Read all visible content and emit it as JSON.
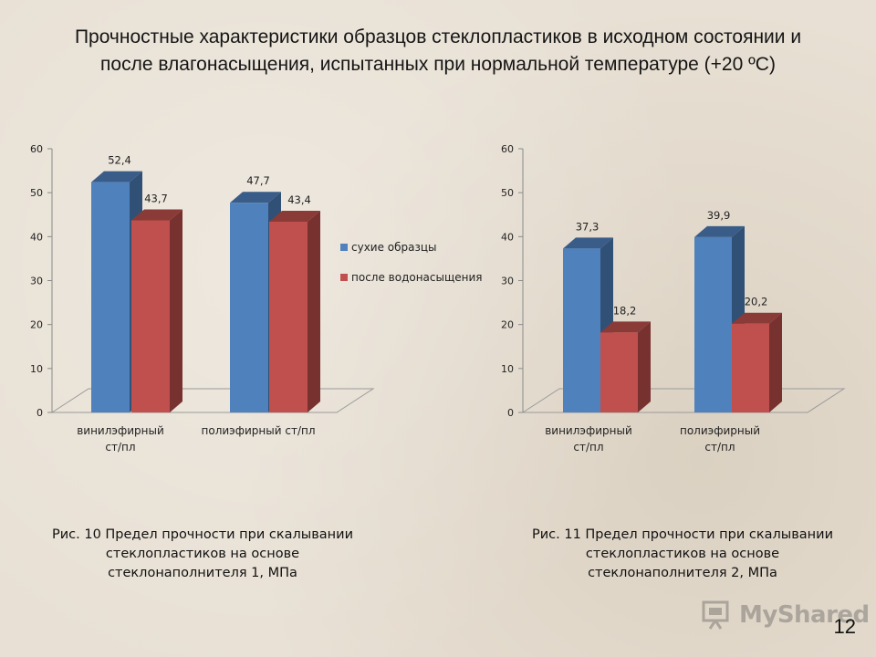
{
  "title": "Прочностные характеристики образцов стеклопластиков в исходном состоянии и после влагонасыщения, испытанных при нормальной температуре (+20 ºС)",
  "legend": {
    "items": [
      "сухие образцы",
      "после водонасыщения"
    ]
  },
  "colors": {
    "series_dry": "#4f81bd",
    "series_wet": "#c0504d"
  },
  "chart_data": [
    {
      "type": "bar",
      "categories": [
        [
          "винилэфирный",
          "ст/пл"
        ],
        [
          "полиэфирный ст/пл"
        ]
      ],
      "series": [
        {
          "name": "сухие образцы",
          "values": [
            52.4,
            47.7
          ],
          "labels": [
            "52,4",
            "47,7"
          ]
        },
        {
          "name": "после водонасыщения",
          "values": [
            43.7,
            43.4
          ],
          "labels": [
            "43,7",
            "43,4"
          ]
        }
      ],
      "ylim": [
        0,
        60
      ],
      "yticks": [
        "0",
        "10",
        "20",
        "30",
        "40",
        "50",
        "60"
      ],
      "legend_position": "right",
      "caption": [
        "Рис. 10 Предел прочности при скалывании",
        "стеклопластиков на основе",
        "стеклонаполнителя 1, МПа"
      ]
    },
    {
      "type": "bar",
      "categories": [
        [
          "винилэфирный",
          "ст/пл"
        ],
        [
          "полиэфирный",
          "ст/пл"
        ]
      ],
      "series": [
        {
          "name": "сухие образцы",
          "values": [
            37.3,
            39.9
          ],
          "labels": [
            "37,3",
            "39,9"
          ]
        },
        {
          "name": "после водонасыщения",
          "values": [
            18.2,
            20.2
          ],
          "labels": [
            "18,2",
            "20,2"
          ]
        }
      ],
      "ylim": [
        0,
        60
      ],
      "yticks": [
        "0",
        "10",
        "20",
        "30",
        "40",
        "50",
        "60"
      ],
      "caption": [
        "Рис. 11 Предел прочности при скалывании",
        "стеклопластиков на основе",
        "стеклонаполнителя 2, МПа"
      ]
    }
  ],
  "watermark": "MyShared",
  "page_number": "12"
}
